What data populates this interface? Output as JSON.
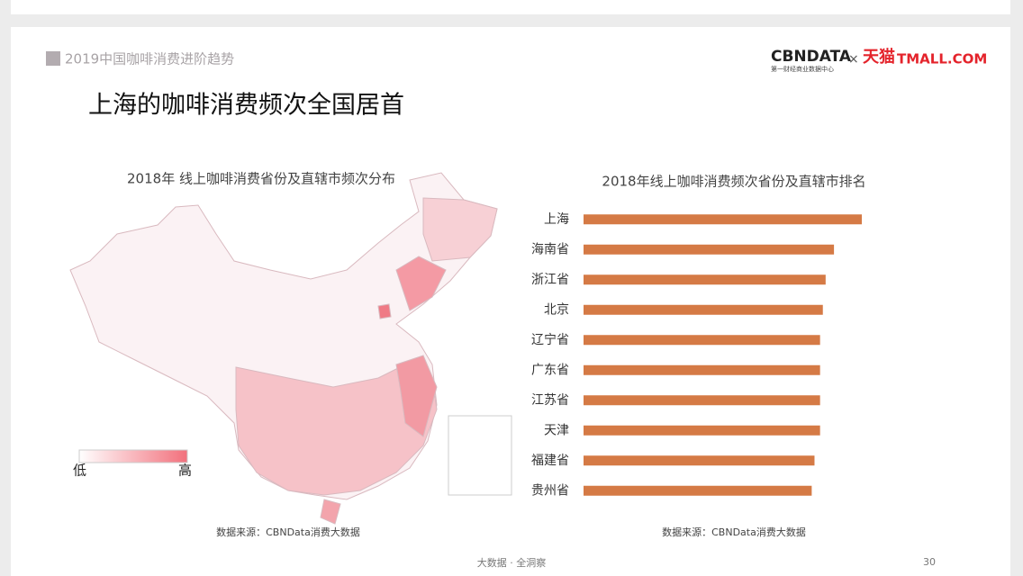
{
  "header": {
    "section": "2019中国咖啡消费进阶趋势",
    "logo": "CBNDATA",
    "logo_sub": "第一财经商业数据中心",
    "times": "×",
    "partner": "天猫",
    "partner_en": "TMALL.COM"
  },
  "title": "上海的咖啡消费频次全国居首",
  "map": {
    "title": "2018年 线上咖啡消费省份及直辖市频次分布",
    "legend_low": "低",
    "legend_high": "高",
    "source": "数据来源：CBNData消费大数据"
  },
  "chart_data": {
    "type": "bar",
    "orientation": "horizontal",
    "title": "2018年线上咖啡消费频次省份及直辖市排名",
    "categories": [
      "上海",
      "海南省",
      "浙江省",
      "北京",
      "辽宁省",
      "广东省",
      "江苏省",
      "天津",
      "福建省",
      "贵州省"
    ],
    "values": [
      100,
      90,
      87,
      86,
      85,
      85,
      85,
      85,
      83,
      82
    ],
    "xlim": [
      0,
      100
    ],
    "color": "#d57a45",
    "source": "数据来源：CBNData消费大数据"
  },
  "footer": {
    "slogan": "大数据 · 全洞察",
    "page": "30"
  }
}
